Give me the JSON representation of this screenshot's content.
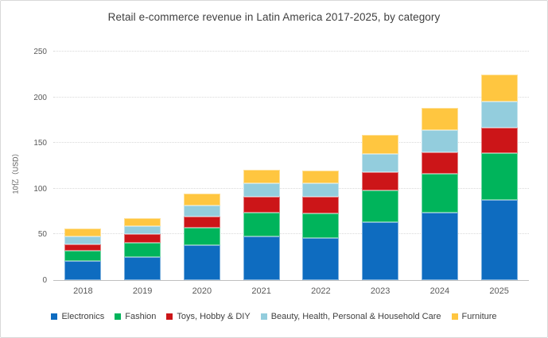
{
  "chart_data": {
    "type": "bar",
    "stacked": true,
    "title": "Retail e-commerce revenue in Latin America 2017-2025, by category",
    "xlabel": "",
    "ylabel": "10亿（USD）",
    "ylim": [
      0,
      250
    ],
    "yticks": [
      0,
      50,
      100,
      150,
      200,
      250
    ],
    "grid": "horizontal-dotted",
    "legend_position": "bottom",
    "categories": [
      "2018",
      "2019",
      "2020",
      "2021",
      "2022",
      "2023",
      "2024",
      "2025"
    ],
    "series": [
      {
        "name": "Electronics",
        "color": "#0e6cc0",
        "values": [
          20.5,
          25.5,
          38,
          47.5,
          46,
          63,
          73.5,
          88
        ]
      },
      {
        "name": "Fashion",
        "color": "#00b45b",
        "values": [
          11.5,
          15.5,
          19,
          26,
          27,
          35,
          43,
          51
        ]
      },
      {
        "name": "Toys, Hobby & DIY",
        "color": "#cc1518",
        "values": [
          7.5,
          9,
          12.5,
          17.5,
          18,
          20,
          23.5,
          27.5
        ]
      },
      {
        "name": "Beauty, Health, Personal & Household Care",
        "color": "#93cddd",
        "values": [
          8.5,
          9,
          12.5,
          14.5,
          14.5,
          20,
          24,
          28.5
        ]
      },
      {
        "name": "Furniture",
        "color": "#ffc640",
        "values": [
          8.5,
          9,
          12.5,
          15.5,
          14.5,
          20.5,
          24.5,
          29.5
        ]
      }
    ]
  }
}
